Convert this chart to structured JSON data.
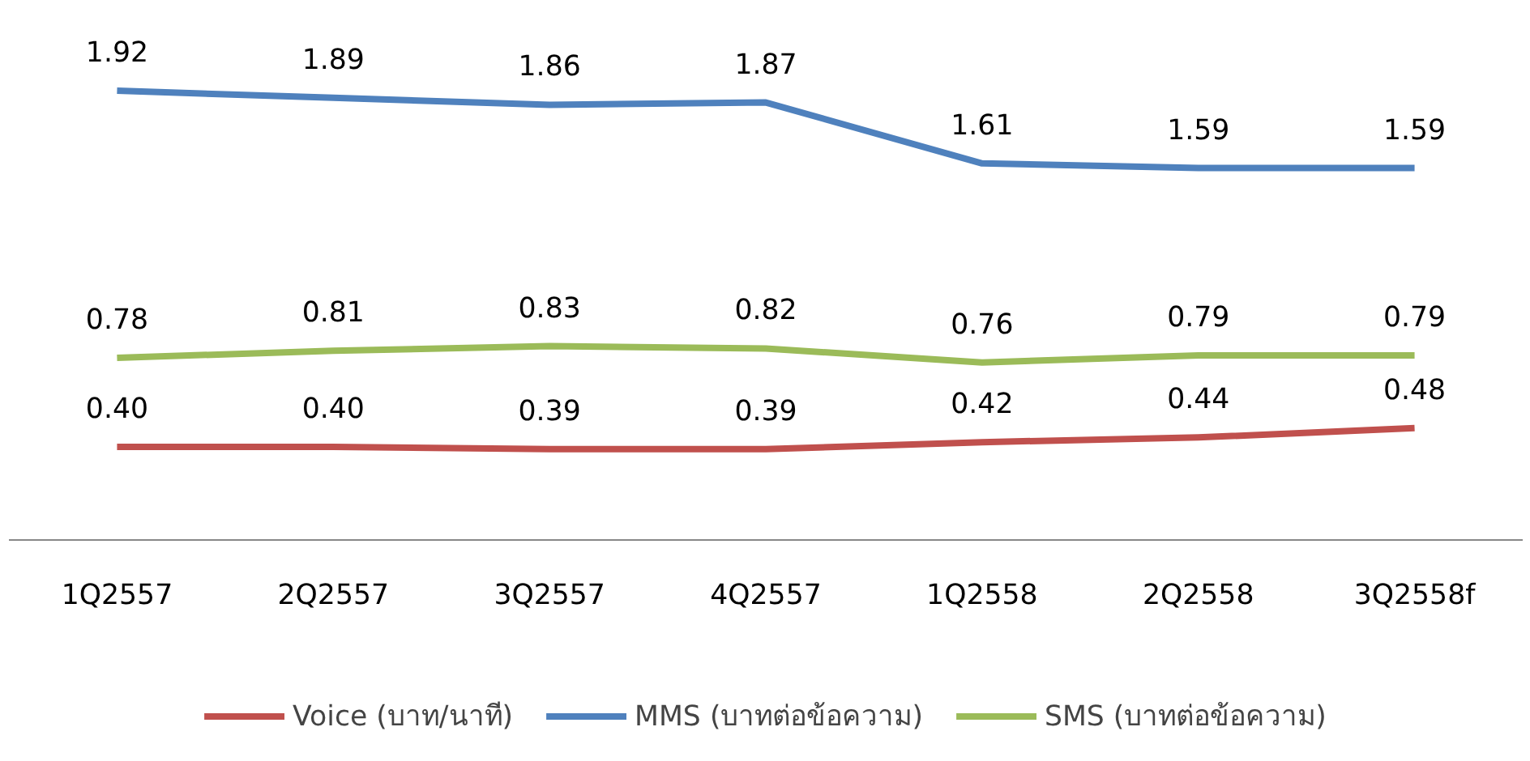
{
  "chart_data": {
    "type": "line",
    "categories": [
      "1Q2557",
      "2Q2557",
      "3Q2557",
      "4Q2557",
      "1Q2558",
      "2Q2558",
      "3Q2558f"
    ],
    "series": [
      {
        "name": "Voice (บาท/นาที)",
        "color": "#c0504d",
        "values": [
          0.4,
          0.4,
          0.39,
          0.39,
          0.42,
          0.44,
          0.48
        ],
        "value_labels": [
          "0.40",
          "0.40",
          "0.39",
          "0.39",
          "0.42",
          "0.44",
          "0.48"
        ]
      },
      {
        "name": "MMS (บาทต่อข้อความ)",
        "color": "#4f81bd",
        "values": [
          1.92,
          1.89,
          1.86,
          1.87,
          1.61,
          1.59,
          1.59
        ],
        "value_labels": [
          "1.92",
          "1.89",
          "1.86",
          "1.87",
          "1.61",
          "1.59",
          "1.59"
        ]
      },
      {
        "name": "SMS (บาทต่อข้อความ)",
        "color": "#9bbb59",
        "values": [
          0.78,
          0.81,
          0.83,
          0.82,
          0.76,
          0.79,
          0.79
        ],
        "value_labels": [
          "0.78",
          "0.81",
          "0.83",
          "0.82",
          "0.76",
          "0.79",
          "0.79"
        ]
      }
    ],
    "tick_labels": "x",
    "legend": "bottom",
    "line_style": "solid"
  }
}
